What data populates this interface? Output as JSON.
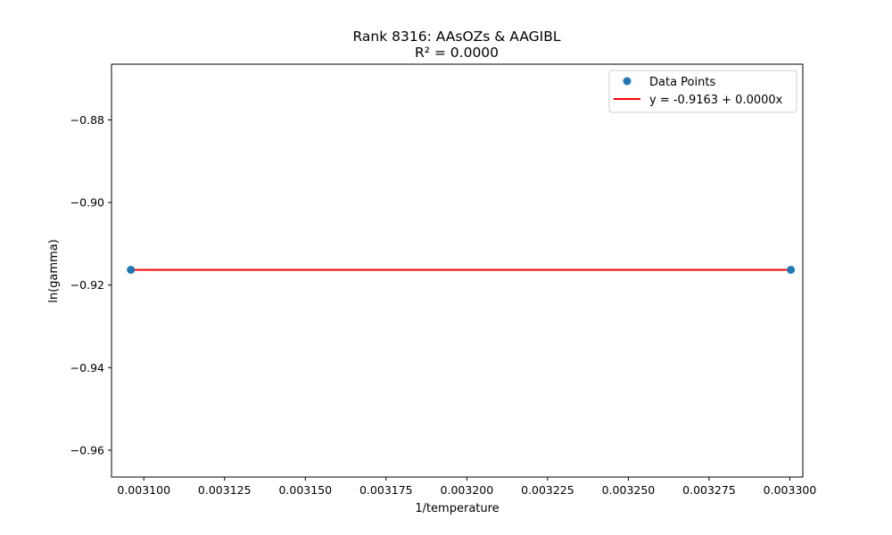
{
  "chart_data": {
    "type": "scatter",
    "title": "Rank 8316: AAsOZs & AAGIBL",
    "subtitle": "R² = 0.0000",
    "xlabel": "1/temperature",
    "ylabel": "ln(gamma)",
    "xlim": [
      0.00309,
      0.003304
    ],
    "ylim": [
      -0.9665,
      -0.8665
    ],
    "x_ticks": [
      0.0031,
      0.003125,
      0.00315,
      0.003175,
      0.0032,
      0.003225,
      0.00325,
      0.003275,
      0.0033
    ],
    "x_tick_labels": [
      "0.003100",
      "0.003125",
      "0.003150",
      "0.003175",
      "0.003200",
      "0.003225",
      "0.003250",
      "0.003275",
      "0.003300"
    ],
    "y_ticks": [
      -0.88,
      -0.9,
      -0.92,
      -0.94,
      -0.96
    ],
    "y_tick_labels": [
      "−0.88",
      "−0.90",
      "−0.92",
      "−0.94",
      "−0.96"
    ],
    "grid": false,
    "legend_position": "top-right",
    "series": [
      {
        "name": "Data Points",
        "kind": "scatter",
        "color": "#1f77b4",
        "points": [
          {
            "x": 0.003096,
            "y": -0.9163
          },
          {
            "x": 0.0033003,
            "y": -0.9163
          }
        ]
      },
      {
        "name": "y = -0.9163 + 0.0000x",
        "kind": "line",
        "color": "#ff0000",
        "points": [
          {
            "x": 0.003096,
            "y": -0.9163
          },
          {
            "x": 0.0033003,
            "y": -0.9163
          }
        ]
      }
    ]
  }
}
